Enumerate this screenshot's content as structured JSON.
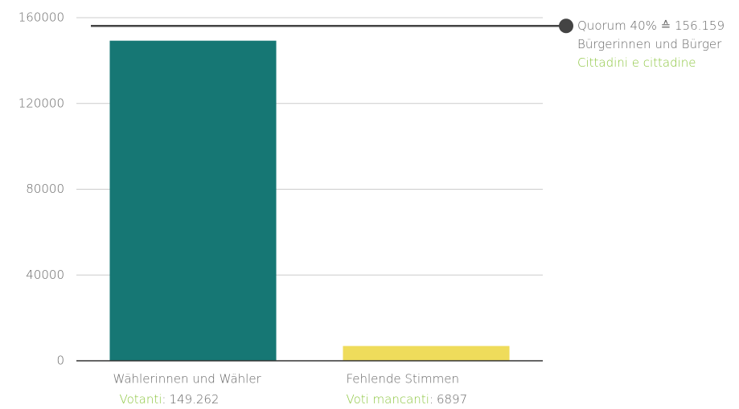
{
  "chart_data": {
    "type": "bar",
    "categories": [
      "Wählerinnen und Wähler",
      "Fehlende Stimmen"
    ],
    "sublabels": [
      "Votanti",
      "Voti mancanti"
    ],
    "separator": ":",
    "values": [
      149262,
      6897
    ],
    "value_labels": [
      "149.262",
      "6897"
    ],
    "colors": [
      "#167774",
      "#efdc5b"
    ],
    "ylim": [
      0,
      160000
    ],
    "yticks": [
      0,
      40000,
      80000,
      120000,
      160000
    ],
    "grid": true,
    "reference_line": {
      "value": 156159,
      "label": "Quorum 40% ≙ 156.159",
      "lines": [
        "Bürgerinnen und Bürger",
        "Cittadini e cittadine"
      ]
    }
  }
}
